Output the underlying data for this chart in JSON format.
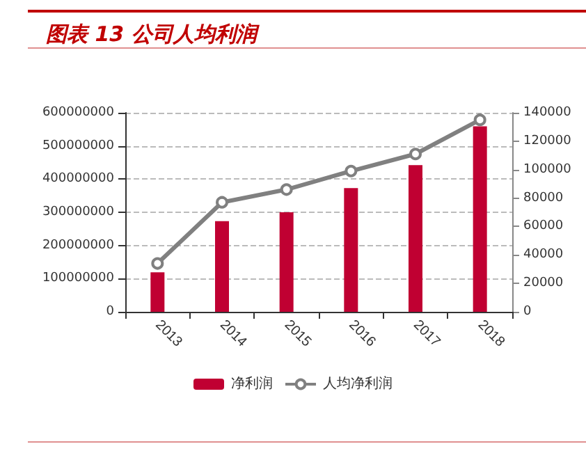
{
  "chart_data": {
    "type": "bar",
    "title": "图表 13 公司人均利润",
    "categories": [
      "2013",
      "2014",
      "2015",
      "2016",
      "2017",
      "2018"
    ],
    "series": [
      {
        "name": "净利润",
        "color": "#c00032",
        "values": [
          119000000,
          273000000,
          300000000,
          373000000,
          442000000,
          559000000
        ]
      },
      {
        "name": "人均净利润",
        "type": "line",
        "axis": "y2",
        "color": "#808080",
        "marker": "circle",
        "values": [
          34000,
          77000,
          86000,
          99000,
          111000,
          135000
        ]
      }
    ],
    "ylim": [
      0,
      600000000
    ],
    "yticks": [
      0,
      100000000,
      200000000,
      300000000,
      400000000,
      500000000,
      600000000
    ],
    "y2lim": [
      0,
      140000
    ],
    "y2ticks": [
      0,
      20000,
      40000,
      60000,
      80000,
      100000,
      120000,
      140000
    ],
    "grid": "y",
    "legend": "bottom"
  }
}
